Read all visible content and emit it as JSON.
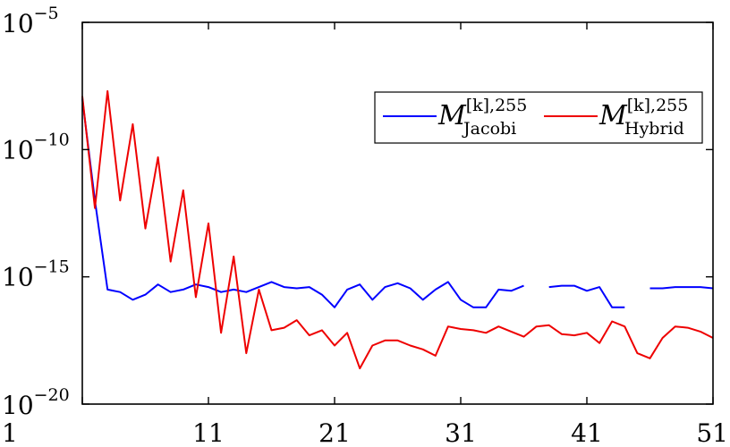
{
  "chart_data": {
    "type": "line",
    "title": "",
    "xlabel": "",
    "ylabel": "",
    "xlim": [
      1,
      51
    ],
    "ylim_log10": [
      -20,
      -5
    ],
    "yscale": "log",
    "grid": false,
    "legend_position": "top-right",
    "x_ticks": [
      1,
      11,
      21,
      31,
      41,
      51
    ],
    "x_tick_labels": [
      "1",
      "11",
      "21",
      "31",
      "41",
      "51"
    ],
    "y_tick_exponents": [
      -5,
      -10,
      -15,
      -20
    ],
    "y_tick_base": "10",
    "y_tick_exp_labels": [
      "−5",
      "−10",
      "−15",
      "−20"
    ],
    "series": [
      {
        "name": "M_Jacobi^{[k],255}",
        "legend": {
          "base": "M",
          "sup": "[k],255",
          "sub": "Jacobi"
        },
        "color": "#0000ff",
        "x": [
          1,
          2,
          3,
          4,
          5,
          6,
          7,
          8,
          9,
          10,
          11,
          12,
          13,
          14,
          15,
          16,
          17,
          18,
          19,
          20,
          21,
          22,
          23,
          24,
          25,
          26,
          27,
          28,
          29,
          30,
          31,
          32,
          33,
          34,
          35,
          36,
          37,
          38,
          39,
          40,
          41,
          42,
          43,
          44,
          45,
          46,
          47,
          48,
          49,
          50,
          51
        ],
        "log10_y": [
          -8.0,
          -12.0,
          -15.5,
          -15.6,
          -15.9,
          -15.7,
          -15.3,
          -15.6,
          -15.5,
          -15.3,
          -15.4,
          -15.6,
          -15.5,
          -15.6,
          -15.4,
          -15.2,
          -15.4,
          -15.45,
          -15.4,
          -15.7,
          -16.2,
          -15.5,
          -15.3,
          -15.9,
          -15.4,
          -15.25,
          -15.45,
          -15.9,
          -15.5,
          -15.2,
          -15.9,
          -16.2,
          -16.2,
          -15.5,
          -15.55,
          -15.35,
          null,
          -15.4,
          -15.35,
          -15.35,
          -15.55,
          -15.4,
          -16.2,
          -16.2,
          null,
          -15.45,
          -15.45,
          -15.4,
          -15.4,
          -15.4,
          -15.45
        ]
      },
      {
        "name": "M_Hybrid^{[k],255}",
        "legend": {
          "base": "M",
          "sup": "[k],255",
          "sub": "Hybrid"
        },
        "color": "#ee0000",
        "x": [
          1,
          2,
          3,
          4,
          5,
          6,
          7,
          8,
          9,
          10,
          11,
          12,
          13,
          14,
          15,
          16,
          17,
          18,
          19,
          20,
          21,
          22,
          23,
          24,
          25,
          26,
          27,
          28,
          29,
          30,
          31,
          32,
          33,
          34,
          35,
          36,
          37,
          38,
          39,
          40,
          41,
          42,
          43,
          44,
          45,
          46,
          47,
          48,
          49,
          50,
          51
        ],
        "log10_y": [
          -7.9,
          -12.3,
          -7.7,
          -12.0,
          -9.0,
          -13.1,
          -10.3,
          -14.4,
          -11.6,
          -15.8,
          -12.9,
          -17.2,
          -14.2,
          -18.0,
          -15.5,
          -17.1,
          -17.0,
          -16.7,
          -17.3,
          -17.1,
          -17.7,
          -17.2,
          -18.6,
          -17.7,
          -17.5,
          -17.5,
          -17.7,
          -17.85,
          -18.1,
          -16.95,
          -17.05,
          -17.1,
          -17.2,
          -16.95,
          -17.15,
          -17.35,
          -16.95,
          -16.9,
          -17.25,
          -17.3,
          -17.2,
          -17.6,
          -16.75,
          -16.95,
          -18.0,
          -18.2,
          -17.4,
          -16.95,
          -17.0,
          -17.15,
          -17.4
        ]
      }
    ]
  }
}
